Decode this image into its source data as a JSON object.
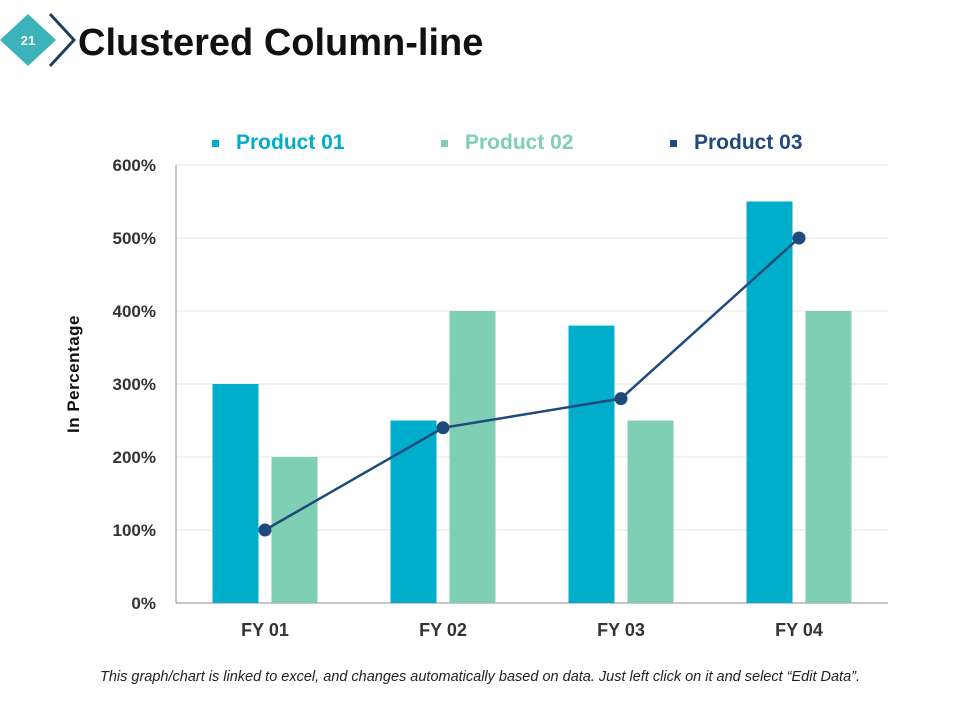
{
  "slide": {
    "number": "21",
    "title": "Clustered Column-line",
    "footnote": "This graph/chart is linked to excel, and changes automatically based on data. Just left click on it and select “Edit Data”."
  },
  "colors": {
    "product01": "#00AECB",
    "product02": "#7ECFB3",
    "product03": "#1F4A7C",
    "badge_fill": "#3BB3B8",
    "badge_outline": "#1F3E5E",
    "grid": "#E6E6E6",
    "axis": "#8C8C8C",
    "tick_text": "#333333"
  },
  "chart_data": {
    "type": "bar+line",
    "title": "Clustered Column-line",
    "ylabel": "In Percentage",
    "xlabel": "",
    "categories": [
      "FY 01",
      "FY 02",
      "FY 03",
      "FY 04"
    ],
    "ylim": [
      0,
      600
    ],
    "ytick_values": [
      0,
      100,
      200,
      300,
      400,
      500,
      600
    ],
    "ytick_labels": [
      "0%",
      "100%",
      "200%",
      "300%",
      "400%",
      "500%",
      "600%"
    ],
    "grid": true,
    "legend_position": "top",
    "series": [
      {
        "name": "Product 01",
        "kind": "bar",
        "values": [
          300,
          250,
          380,
          550
        ]
      },
      {
        "name": "Product 02",
        "kind": "bar",
        "values": [
          200,
          400,
          250,
          400
        ]
      },
      {
        "name": "Product 03",
        "kind": "line",
        "values": [
          100,
          240,
          280,
          500
        ]
      }
    ]
  }
}
